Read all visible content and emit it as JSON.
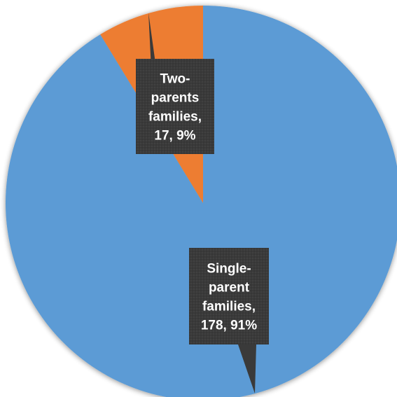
{
  "chart_data": {
    "type": "pie",
    "title": "",
    "slices": [
      {
        "label": "Two-parents families",
        "value": 17,
        "percent": "9%",
        "color": "#ED7D31"
      },
      {
        "label": "Single-parent families",
        "value": 178,
        "percent": "91%",
        "color": "#5B9BD5"
      }
    ],
    "data_labels": [
      [
        "Two-",
        "parents",
        "families,",
        "17, 9%"
      ],
      [
        "Single-",
        "parent",
        "families,",
        "178, 91%"
      ]
    ],
    "legend": "none",
    "label_style": "callout",
    "label_background": "#404040",
    "label_text_color": "#ffffff"
  }
}
